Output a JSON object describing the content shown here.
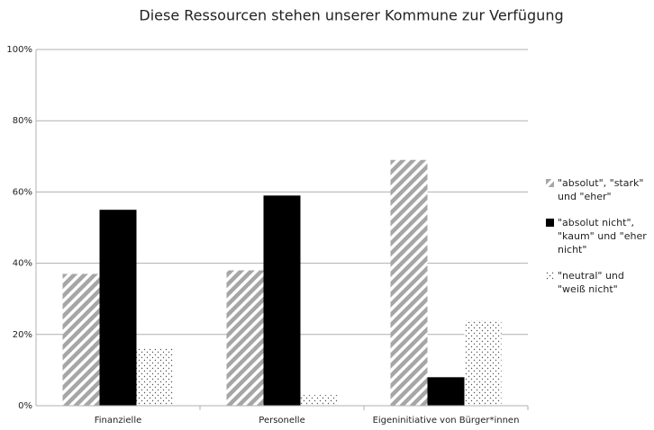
{
  "chart_data": {
    "type": "bar",
    "title": "Diese Ressourcen stehen unserer Kommune zur Verfügung",
    "categories": [
      "Finanzielle",
      "Personelle",
      "Eigeninitiative von Bürger*innen"
    ],
    "series": [
      {
        "name": "\"absolut\", \"stark\" und \"eher\"",
        "color": "#a6a6a6",
        "pattern": "hatch",
        "values": [
          37,
          38,
          69
        ]
      },
      {
        "name": "\"absolut nicht\", \"kaum\" und \"eher nicht\"",
        "color": "#000000",
        "pattern": "solid",
        "values": [
          55,
          59,
          8
        ]
      },
      {
        "name": "\"neutral\" und \"weiß nicht\"",
        "color": "#555555",
        "pattern": "dots",
        "values": [
          16,
          3,
          24
        ]
      }
    ],
    "ylim": [
      0,
      100
    ],
    "yticks": [
      {
        "value": 0,
        "label": "0%"
      },
      {
        "value": 20,
        "label": "20%"
      },
      {
        "value": 40,
        "label": "40%"
      },
      {
        "value": 60,
        "label": "60%"
      },
      {
        "value": 80,
        "label": "80%"
      },
      {
        "value": 100,
        "label": "100%"
      }
    ],
    "grid": true,
    "legend": "right"
  }
}
